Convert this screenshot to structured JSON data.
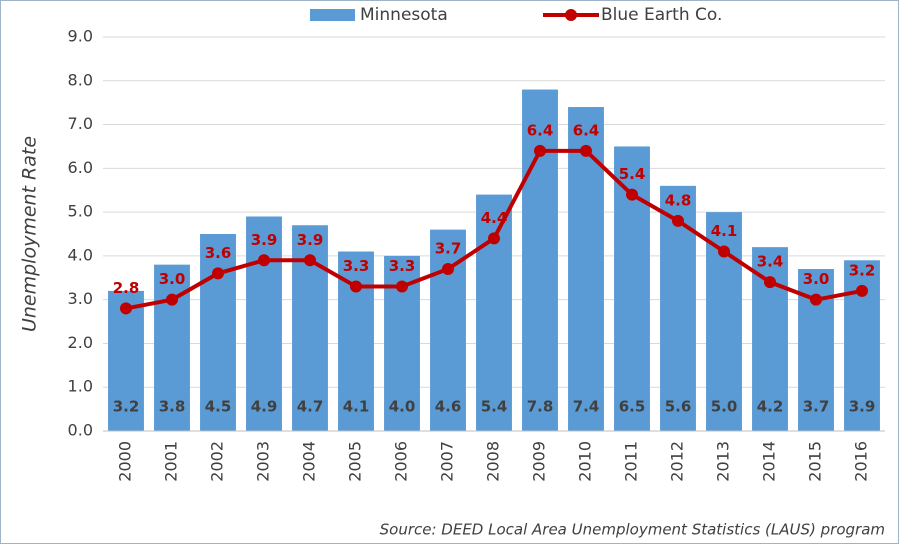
{
  "chart_data": {
    "type": "bar",
    "y_label": "Unemployment Rate",
    "source": "Source: DEED Local Area Unemployment Statistics (LAUS) program",
    "categories": [
      "2000",
      "2001",
      "2002",
      "2003",
      "2004",
      "2005",
      "2006",
      "2007",
      "2008",
      "2009",
      "2010",
      "2011",
      "2012",
      "2013",
      "2014",
      "2015",
      "2016"
    ],
    "series": [
      {
        "name": "Minnesota",
        "type": "bar",
        "color": "#5b9bd5",
        "values": [
          3.2,
          3.8,
          4.5,
          4.9,
          4.7,
          4.1,
          4.0,
          4.6,
          5.4,
          7.8,
          7.4,
          6.5,
          5.6,
          5.0,
          4.2,
          3.7,
          3.9
        ],
        "value_labels": [
          "3.2",
          "3.8",
          "4.5",
          "4.9",
          "4.7",
          "4.1",
          "4.0",
          "4.6",
          "5.4",
          "7.8",
          "7.4",
          "6.5",
          "5.6",
          "5.0",
          "4.2",
          "3.7",
          "3.9"
        ]
      },
      {
        "name": "Blue Earth Co.",
        "type": "line",
        "color": "#c00000",
        "values": [
          2.8,
          3.0,
          3.6,
          3.9,
          3.9,
          3.3,
          3.3,
          3.7,
          4.4,
          6.4,
          6.4,
          5.4,
          4.8,
          4.1,
          3.4,
          3.0,
          3.2
        ],
        "value_labels": [
          "2.8",
          "3.0",
          "3.6",
          "3.9",
          "3.9",
          "3.3",
          "3.3",
          "3.7",
          "4.4",
          "6.4",
          "6.4",
          "5.4",
          "4.8",
          "4.1",
          "3.4",
          "3.0",
          "3.2"
        ]
      }
    ],
    "ylim": [
      0,
      9
    ],
    "yticks": [
      {
        "value": 0,
        "label": "0.0"
      },
      {
        "value": 1,
        "label": "1.0"
      },
      {
        "value": 2,
        "label": "2.0"
      },
      {
        "value": 3,
        "label": "3.0"
      },
      {
        "value": 4,
        "label": "4.0"
      },
      {
        "value": 5,
        "label": "5.0"
      },
      {
        "value": 6,
        "label": "6.0"
      },
      {
        "value": 7,
        "label": "7.0"
      },
      {
        "value": 8,
        "label": "8.0"
      },
      {
        "value": 9,
        "label": "9.0"
      }
    ],
    "grid": true,
    "legend": "top"
  }
}
